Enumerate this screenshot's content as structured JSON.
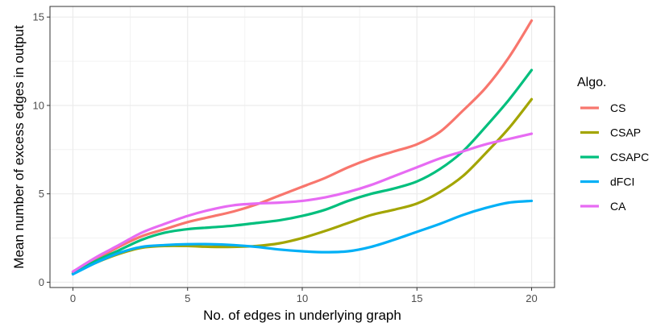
{
  "chart_data": {
    "type": "line",
    "xlabel": "No. of edges in underlying graph",
    "ylabel": "Mean number of excess edges in output",
    "xlim": [
      -1,
      21
    ],
    "ylim": [
      -0.3,
      15.6
    ],
    "x_ticks": [
      0,
      5,
      10,
      15,
      20
    ],
    "y_ticks": [
      0,
      5,
      10,
      15
    ],
    "x_tick_labels": [
      "0",
      "5",
      "10",
      "15",
      "20"
    ],
    "y_tick_labels": [
      "0",
      "5",
      "10",
      "15"
    ],
    "grid": true,
    "legend": {
      "title": "Algo.",
      "position": "right"
    },
    "x": [
      0,
      1,
      2,
      3,
      4,
      5,
      6,
      7,
      8,
      9,
      10,
      11,
      12,
      13,
      14,
      15,
      16,
      17,
      18,
      19,
      20
    ],
    "series": [
      {
        "name": "CS",
        "color": "#F8766D",
        "values": [
          0.6,
          1.3,
          2.0,
          2.6,
          3.0,
          3.4,
          3.7,
          4.0,
          4.4,
          4.9,
          5.4,
          5.9,
          6.5,
          7.0,
          7.4,
          7.8,
          8.5,
          9.7,
          11.0,
          12.7,
          14.8
        ]
      },
      {
        "name": "CSAP",
        "color": "#A3A500",
        "values": [
          0.5,
          1.1,
          1.6,
          1.95,
          2.05,
          2.05,
          2.0,
          2.0,
          2.05,
          2.2,
          2.5,
          2.9,
          3.35,
          3.8,
          4.1,
          4.45,
          5.1,
          6.0,
          7.3,
          8.7,
          10.35
        ]
      },
      {
        "name": "CSAPC",
        "color": "#00BF7D",
        "values": [
          0.5,
          1.2,
          1.8,
          2.4,
          2.8,
          3.0,
          3.1,
          3.2,
          3.35,
          3.5,
          3.75,
          4.1,
          4.6,
          5.0,
          5.3,
          5.7,
          6.4,
          7.4,
          8.8,
          10.3,
          12.0
        ]
      },
      {
        "name": "dFCI",
        "color": "#00B0F6",
        "values": [
          0.45,
          1.1,
          1.65,
          2.0,
          2.1,
          2.15,
          2.15,
          2.1,
          2.0,
          1.85,
          1.75,
          1.7,
          1.75,
          2.0,
          2.4,
          2.85,
          3.3,
          3.8,
          4.2,
          4.5,
          4.6
        ]
      },
      {
        "name": "CA",
        "color": "#E76BF3",
        "values": [
          0.6,
          1.4,
          2.1,
          2.8,
          3.3,
          3.75,
          4.1,
          4.35,
          4.45,
          4.5,
          4.6,
          4.8,
          5.1,
          5.5,
          6.0,
          6.5,
          7.0,
          7.4,
          7.8,
          8.1,
          8.4
        ]
      }
    ]
  }
}
